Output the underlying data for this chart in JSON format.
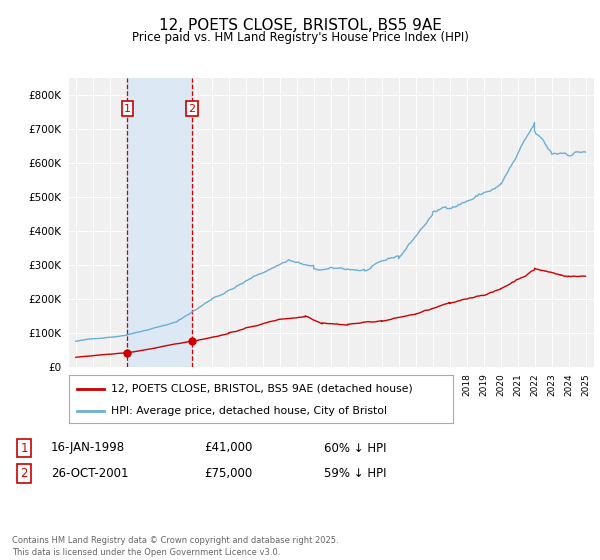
{
  "title": "12, POETS CLOSE, BRISTOL, BS5 9AE",
  "subtitle": "Price paid vs. HM Land Registry's House Price Index (HPI)",
  "hpi_color": "#6baed6",
  "price_color": "#cc0000",
  "purchase1_x": 1998.04,
  "purchase1_y": 41000,
  "purchase2_x": 2001.82,
  "purchase2_y": 75000,
  "purchase1_date": "16-JAN-1998",
  "purchase1_price": "£41,000",
  "purchase1_pct": "60% ↓ HPI",
  "purchase2_date": "26-OCT-2001",
  "purchase2_price": "£75,000",
  "purchase2_pct": "59% ↓ HPI",
  "legend_label_price": "12, POETS CLOSE, BRISTOL, BS5 9AE (detached house)",
  "legend_label_hpi": "HPI: Average price, detached house, City of Bristol",
  "footer": "Contains HM Land Registry data © Crown copyright and database right 2025.\nThis data is licensed under the Open Government Licence v3.0.",
  "ylim": [
    0,
    850000
  ],
  "yticks": [
    0,
    100000,
    200000,
    300000,
    400000,
    500000,
    600000,
    700000,
    800000
  ],
  "xlim_left": 1994.6,
  "xlim_right": 2025.5,
  "background_color": "#ffffff",
  "plot_bg_color": "#f0f0f0",
  "span_color": "#dce9f5"
}
